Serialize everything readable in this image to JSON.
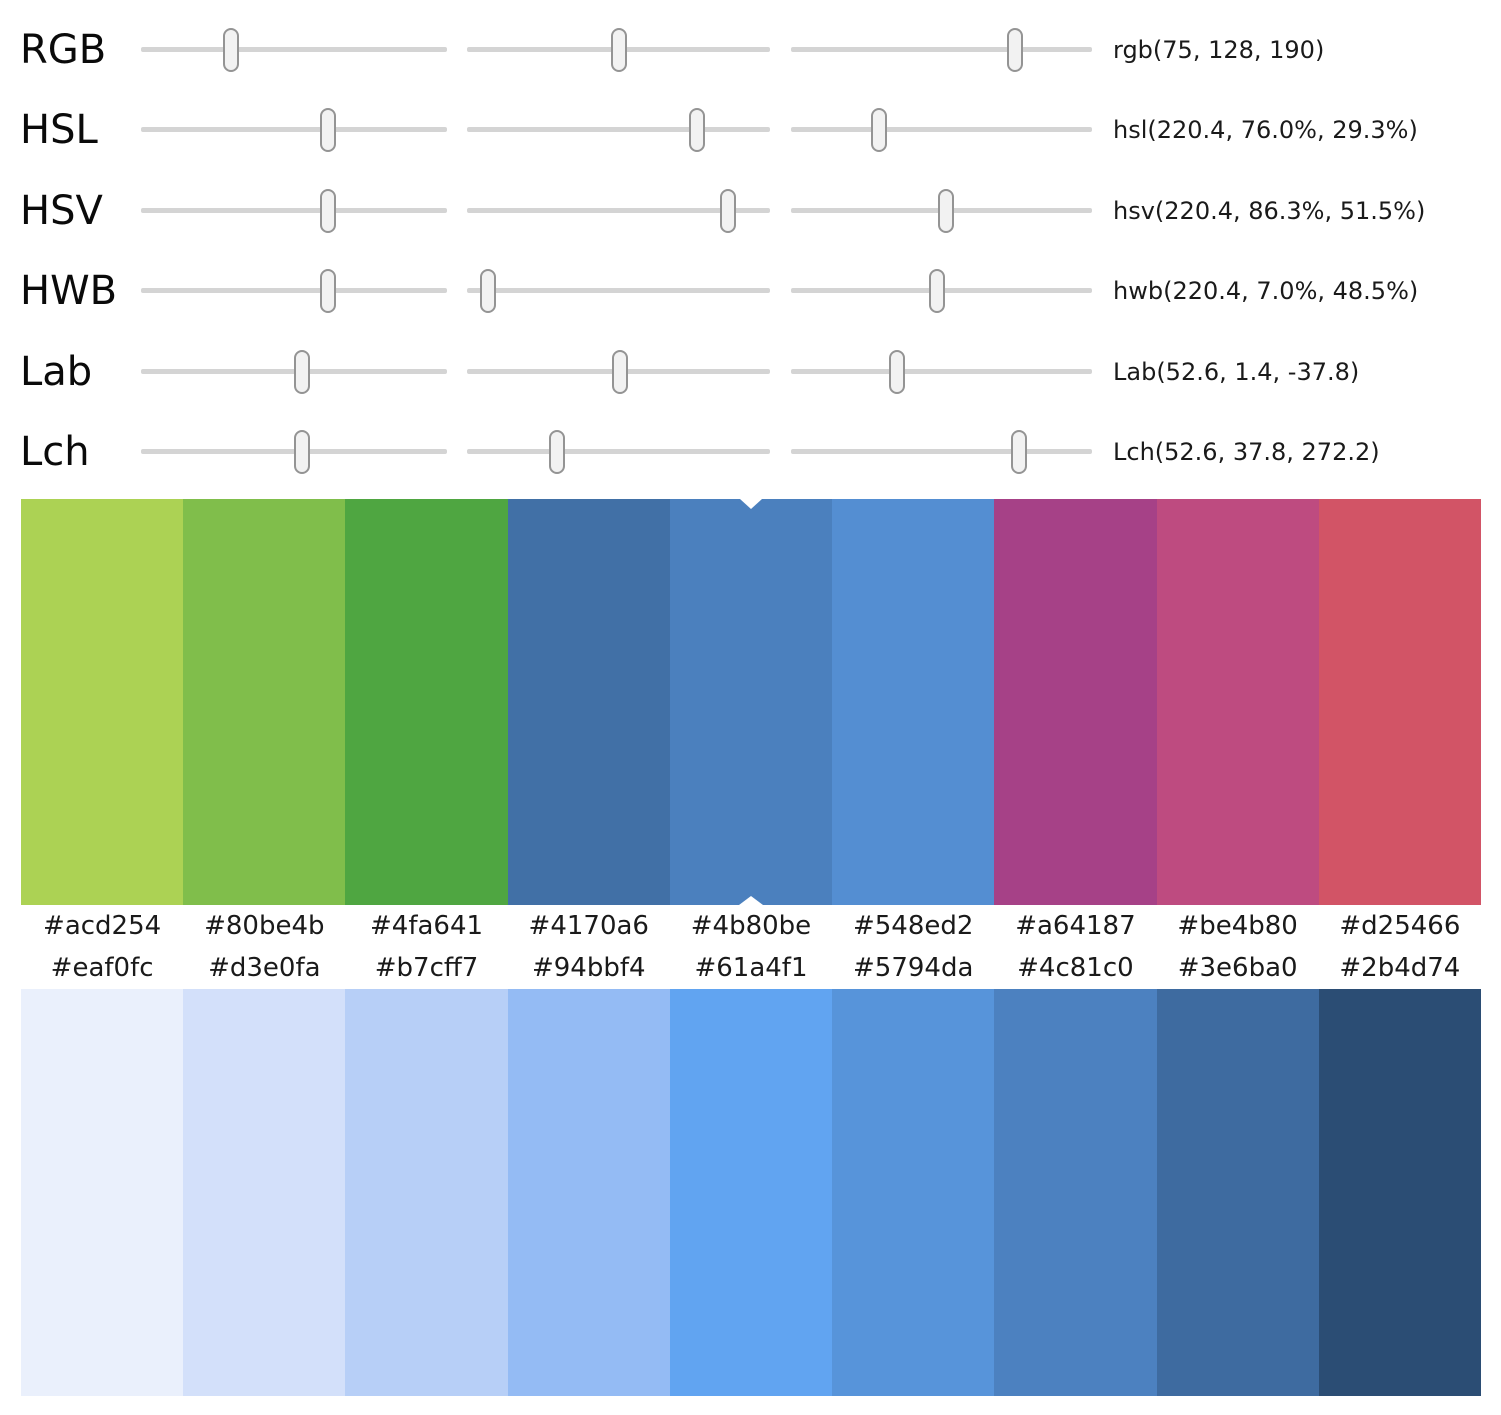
{
  "ui_colors": {
    "background": "#ffffff",
    "track": "#d4d4d4",
    "handle_fill": "#f2f2f2",
    "handle_border": "#949494",
    "text": "#1a1a1a",
    "marker": "#ffffff"
  },
  "sliders": {
    "rows": [
      {
        "label": "RGB",
        "value": "rgb(75, 128, 190)",
        "positions": [
          0.294,
          0.502,
          0.745
        ]
      },
      {
        "label": "HSL",
        "value": "hsl(220.4, 76.0%, 29.3%)",
        "positions": [
          0.612,
          0.76,
          0.293
        ]
      },
      {
        "label": "HSV",
        "value": "hsv(220.4, 86.3%, 51.5%)",
        "positions": [
          0.612,
          0.863,
          0.515
        ]
      },
      {
        "label": "HWB",
        "value": "hwb(220.4, 7.0%, 48.5%)",
        "positions": [
          0.612,
          0.07,
          0.485
        ]
      },
      {
        "label": "Lab",
        "value": "Lab(52.6, 1.4, -37.8)",
        "positions": [
          0.526,
          0.506,
          0.352
        ]
      },
      {
        "label": "Lch",
        "value": "Lch(52.6, 37.8, 272.2)",
        "positions": [
          0.526,
          0.298,
          0.756
        ]
      }
    ]
  },
  "palette_top": {
    "selected_index": 4,
    "hex": [
      "#acd254",
      "#80be4b",
      "#4fa641",
      "#4170a6",
      "#4b80be",
      "#548ed2",
      "#a64187",
      "#be4b80",
      "#d25466"
    ]
  },
  "palette_bottom": {
    "hex": [
      "#eaf0fc",
      "#d3e0fa",
      "#b7cff7",
      "#94bbf4",
      "#61a4f1",
      "#5794da",
      "#4c81c0",
      "#3e6ba0",
      "#2b4d74"
    ]
  }
}
